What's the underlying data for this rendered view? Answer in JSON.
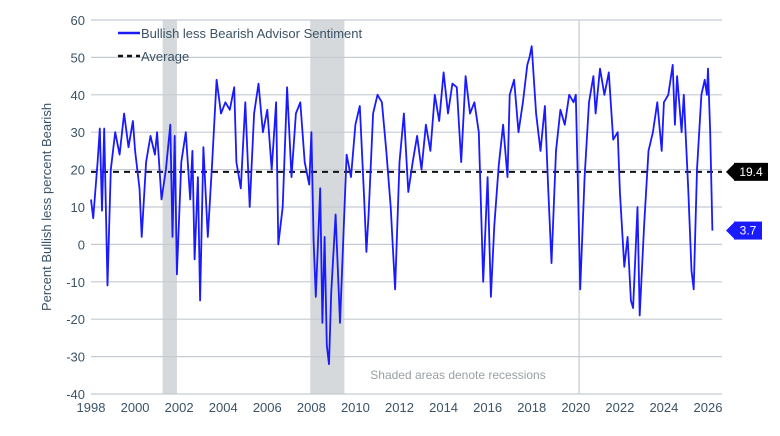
{
  "chart_data": {
    "type": "line",
    "title": "",
    "xlabel": "",
    "ylabel": "Percent Bullish less percent Bearish",
    "xlim": [
      1998,
      2026.6
    ],
    "ylim": [
      -40,
      60
    ],
    "x_ticks": [
      "1998",
      "2000",
      "2002",
      "2004",
      "2006",
      "2008",
      "2010",
      "2012",
      "2014",
      "2016",
      "2018",
      "2020",
      "2022",
      "2024",
      "2026"
    ],
    "y_ticks": [
      60,
      50,
      40,
      30,
      20,
      10,
      0,
      -10,
      -20,
      -30,
      -40
    ],
    "grid": "horizontal",
    "legend_placement": "top-left",
    "annotation": "Shaded areas denote recessions",
    "recessions": [
      [
        2001.25,
        2001.9
      ],
      [
        2007.95,
        2009.5
      ],
      [
        2020.15,
        2020.3
      ]
    ],
    "colors": {
      "series": "#1a1aff",
      "average": "#111111",
      "recession": "#d5d9dc",
      "grid": "#c5cbd0",
      "text": "#3b5366"
    },
    "series": [
      {
        "name": "Bullish less Bearish Advisor Sentiment",
        "last_value_label": "3.7",
        "points": [
          [
            1998.0,
            12
          ],
          [
            1998.1,
            7
          ],
          [
            1998.3,
            22
          ],
          [
            1998.4,
            31
          ],
          [
            1998.5,
            9
          ],
          [
            1998.6,
            31
          ],
          [
            1998.75,
            -11
          ],
          [
            1998.9,
            20
          ],
          [
            1999.1,
            30
          ],
          [
            1999.3,
            24
          ],
          [
            1999.5,
            35
          ],
          [
            1999.7,
            26
          ],
          [
            1999.9,
            33
          ],
          [
            2000.0,
            25
          ],
          [
            2000.2,
            15
          ],
          [
            2000.3,
            2
          ],
          [
            2000.5,
            22
          ],
          [
            2000.7,
            29
          ],
          [
            2000.9,
            24
          ],
          [
            2001.0,
            30
          ],
          [
            2001.2,
            12
          ],
          [
            2001.4,
            20
          ],
          [
            2001.6,
            32
          ],
          [
            2001.7,
            2
          ],
          [
            2001.8,
            29
          ],
          [
            2001.9,
            -8
          ],
          [
            2002.1,
            22
          ],
          [
            2002.3,
            30
          ],
          [
            2002.5,
            12
          ],
          [
            2002.6,
            25
          ],
          [
            2002.7,
            -4
          ],
          [
            2002.85,
            18
          ],
          [
            2002.95,
            -15
          ],
          [
            2003.1,
            26
          ],
          [
            2003.3,
            2
          ],
          [
            2003.5,
            22
          ],
          [
            2003.7,
            44
          ],
          [
            2003.9,
            35
          ],
          [
            2004.1,
            38
          ],
          [
            2004.3,
            36
          ],
          [
            2004.5,
            42
          ],
          [
            2004.6,
            22
          ],
          [
            2004.8,
            15
          ],
          [
            2005.0,
            38
          ],
          [
            2005.2,
            10
          ],
          [
            2005.4,
            35
          ],
          [
            2005.6,
            43
          ],
          [
            2005.8,
            30
          ],
          [
            2006.0,
            36
          ],
          [
            2006.2,
            20
          ],
          [
            2006.4,
            38
          ],
          [
            2006.5,
            0
          ],
          [
            2006.7,
            10
          ],
          [
            2006.9,
            42
          ],
          [
            2007.1,
            18
          ],
          [
            2007.3,
            35
          ],
          [
            2007.5,
            38
          ],
          [
            2007.7,
            22
          ],
          [
            2007.9,
            16
          ],
          [
            2008.0,
            30
          ],
          [
            2008.1,
            1
          ],
          [
            2008.2,
            -14
          ],
          [
            2008.4,
            15
          ],
          [
            2008.5,
            -21
          ],
          [
            2008.6,
            2
          ],
          [
            2008.7,
            -27
          ],
          [
            2008.8,
            -32
          ],
          [
            2008.9,
            -13
          ],
          [
            2009.1,
            8
          ],
          [
            2009.3,
            -21
          ],
          [
            2009.5,
            9
          ],
          [
            2009.6,
            24
          ],
          [
            2009.8,
            18
          ],
          [
            2010.0,
            32
          ],
          [
            2010.2,
            37
          ],
          [
            2010.4,
            12
          ],
          [
            2010.5,
            -2
          ],
          [
            2010.6,
            8
          ],
          [
            2010.8,
            35
          ],
          [
            2011.0,
            40
          ],
          [
            2011.2,
            38
          ],
          [
            2011.4,
            25
          ],
          [
            2011.6,
            10
          ],
          [
            2011.8,
            -12
          ],
          [
            2012.0,
            22
          ],
          [
            2012.2,
            35
          ],
          [
            2012.4,
            14
          ],
          [
            2012.6,
            22
          ],
          [
            2012.8,
            29
          ],
          [
            2013.0,
            20
          ],
          [
            2013.2,
            32
          ],
          [
            2013.4,
            25
          ],
          [
            2013.6,
            40
          ],
          [
            2013.8,
            33
          ],
          [
            2014.0,
            46
          ],
          [
            2014.2,
            35
          ],
          [
            2014.4,
            43
          ],
          [
            2014.6,
            42
          ],
          [
            2014.8,
            22
          ],
          [
            2015.0,
            45
          ],
          [
            2015.2,
            35
          ],
          [
            2015.4,
            38
          ],
          [
            2015.6,
            30
          ],
          [
            2015.8,
            -10
          ],
          [
            2016.0,
            18
          ],
          [
            2016.15,
            -14
          ],
          [
            2016.3,
            5
          ],
          [
            2016.5,
            21
          ],
          [
            2016.7,
            32
          ],
          [
            2016.9,
            18
          ],
          [
            2017.0,
            40
          ],
          [
            2017.2,
            44
          ],
          [
            2017.4,
            30
          ],
          [
            2017.6,
            38
          ],
          [
            2017.8,
            48
          ],
          [
            2017.9,
            50
          ],
          [
            2018.0,
            53
          ],
          [
            2018.2,
            35
          ],
          [
            2018.4,
            25
          ],
          [
            2018.6,
            37
          ],
          [
            2018.75,
            15
          ],
          [
            2018.9,
            -5
          ],
          [
            2019.1,
            25
          ],
          [
            2019.3,
            36
          ],
          [
            2019.5,
            32
          ],
          [
            2019.7,
            40
          ],
          [
            2019.9,
            38
          ],
          [
            2020.0,
            40
          ],
          [
            2020.1,
            15
          ],
          [
            2020.2,
            -12
          ],
          [
            2020.4,
            18
          ],
          [
            2020.6,
            38
          ],
          [
            2020.8,
            45
          ],
          [
            2020.9,
            35
          ],
          [
            2021.1,
            47
          ],
          [
            2021.3,
            40
          ],
          [
            2021.5,
            46
          ],
          [
            2021.7,
            28
          ],
          [
            2021.9,
            30
          ],
          [
            2022.0,
            14
          ],
          [
            2022.2,
            -6
          ],
          [
            2022.35,
            2
          ],
          [
            2022.5,
            -15
          ],
          [
            2022.6,
            -17
          ],
          [
            2022.8,
            10
          ],
          [
            2022.9,
            -19
          ],
          [
            2023.1,
            5
          ],
          [
            2023.3,
            25
          ],
          [
            2023.5,
            30
          ],
          [
            2023.7,
            38
          ],
          [
            2023.9,
            25
          ],
          [
            2024.0,
            38
          ],
          [
            2024.2,
            40
          ],
          [
            2024.4,
            48
          ],
          [
            2024.5,
            32
          ],
          [
            2024.6,
            45
          ],
          [
            2024.8,
            30
          ],
          [
            2024.9,
            40
          ],
          [
            2025.1,
            15
          ],
          [
            2025.25,
            -7
          ],
          [
            2025.35,
            -12
          ],
          [
            2025.5,
            20
          ],
          [
            2025.7,
            40
          ],
          [
            2025.85,
            44
          ],
          [
            2025.95,
            40
          ],
          [
            2026.0,
            47
          ],
          [
            2026.1,
            30
          ],
          [
            2026.2,
            3.7
          ]
        ]
      },
      {
        "name": "Average",
        "value": 19.4,
        "value_label": "19.4"
      }
    ]
  }
}
